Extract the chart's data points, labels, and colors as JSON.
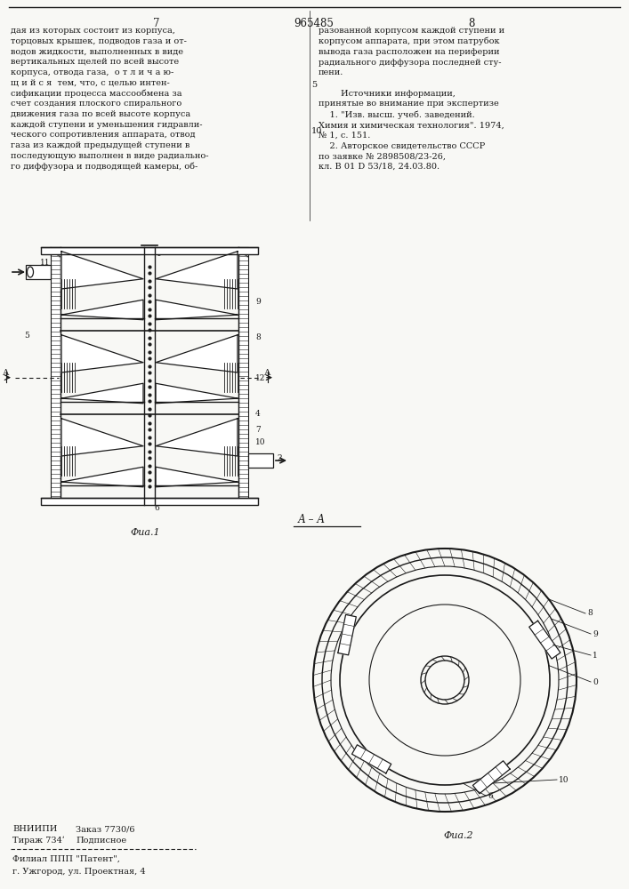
{
  "page_number_left": "7",
  "page_number_center": "965485",
  "page_number_right": "8",
  "text_left": "дая из которых состоит из корпуса,\nторцовых крышек, подводов газа и от-\nводов жидкости, выполненных в виде\nвертикальных щелей по всей высоте\nкорпуса, отвода газа,  о т л и ч а ю-\nщ и й с я  тем, что, с целью интен-\nсификации процесса массообмена за\nсчет создания плоского спирального\nдвижения газа по всей высоте корпуса\nкаждой ступени и уменьшения гидравли-\nческого сопротивления аппарата, отвод\nгаза из каждой предыдущей ступени в\nпоследующую выполнен в виде радиально-\nго диффузора и подводящей камеры, об-",
  "text_right": "разованной корпусом каждой ступени и\nкорпусом аппарата, при этом патрубок\nвывода газа расположен на периферии\nрадиального диффузора последней сту-\nпени.\n\n        Источники информации,\nпринятые во внимание при экспертизе\n    1. \"Изв. высш. учеб. заведений.\nХимия и химическая технология\". 1974,\n№ 1, с. 151.\n    2. Авторское свидетельство СССР\nпо заявке № 2898508/23-26,\nкл. В 01 D 53/18, 24.03.80.",
  "line_num_5": "5",
  "line_num_10": "10",
  "footer_org": "ВНИИПИ",
  "footer_order": "Заказ 7730/6",
  "footer_circ": "Тираж 734ʹ",
  "footer_sign": "Подписное",
  "footer_branch": "Филиал ППП \"Патент\",",
  "footer_addr": "г. Ужгород, ул. Проектная, 4",
  "fig1_label": "Фиа.1",
  "fig2_label": "Фиа.2",
  "section_label": "А – А",
  "bg_color": "#f8f8f5",
  "line_color": "#1a1a1a",
  "text_color": "#1a1a1a"
}
